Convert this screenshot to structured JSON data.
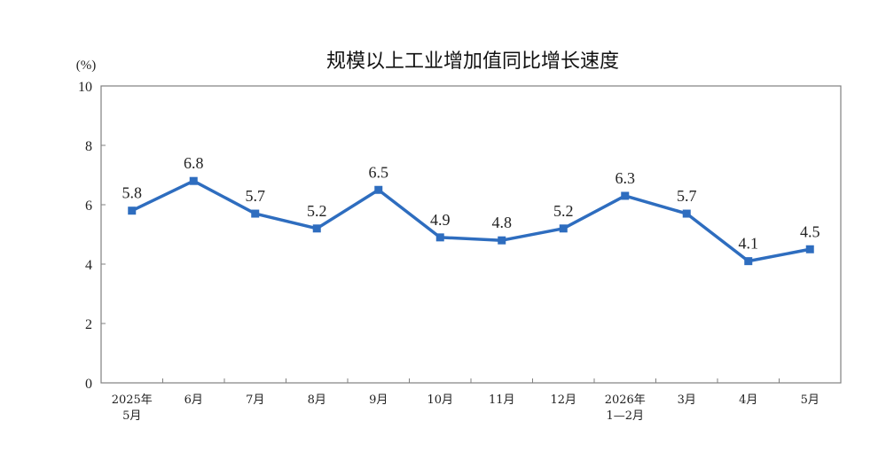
{
  "chart_data": {
    "type": "line",
    "title": "规模以上工业增加值同比增长速度",
    "unit_label": "(%)",
    "xlabel": "",
    "ylabel": "",
    "ylim": [
      0,
      10
    ],
    "yticks": [
      "0",
      "2",
      "4",
      "6",
      "8",
      "10"
    ],
    "grid": false,
    "legend": "none",
    "categories": [
      [
        "2025年",
        "5月"
      ],
      [
        "6月"
      ],
      [
        "7月"
      ],
      [
        "8月"
      ],
      [
        "9月"
      ],
      [
        "10月"
      ],
      [
        "11月"
      ],
      [
        "12月"
      ],
      [
        "2026年",
        "1—2月"
      ],
      [
        "3月"
      ],
      [
        "4月"
      ],
      [
        "5月"
      ]
    ],
    "series": [
      {
        "values": [
          5.8,
          6.8,
          5.7,
          5.2,
          6.5,
          4.9,
          4.8,
          5.2,
          6.3,
          5.7,
          4.1,
          4.5
        ],
        "labels": [
          "5.8",
          "6.8",
          "5.7",
          "5.2",
          "6.5",
          "4.9",
          "4.8",
          "5.2",
          "6.3",
          "5.7",
          "4.1",
          "4.5"
        ],
        "color": "#2E6DBF"
      }
    ],
    "axis_color": "#808080"
  }
}
